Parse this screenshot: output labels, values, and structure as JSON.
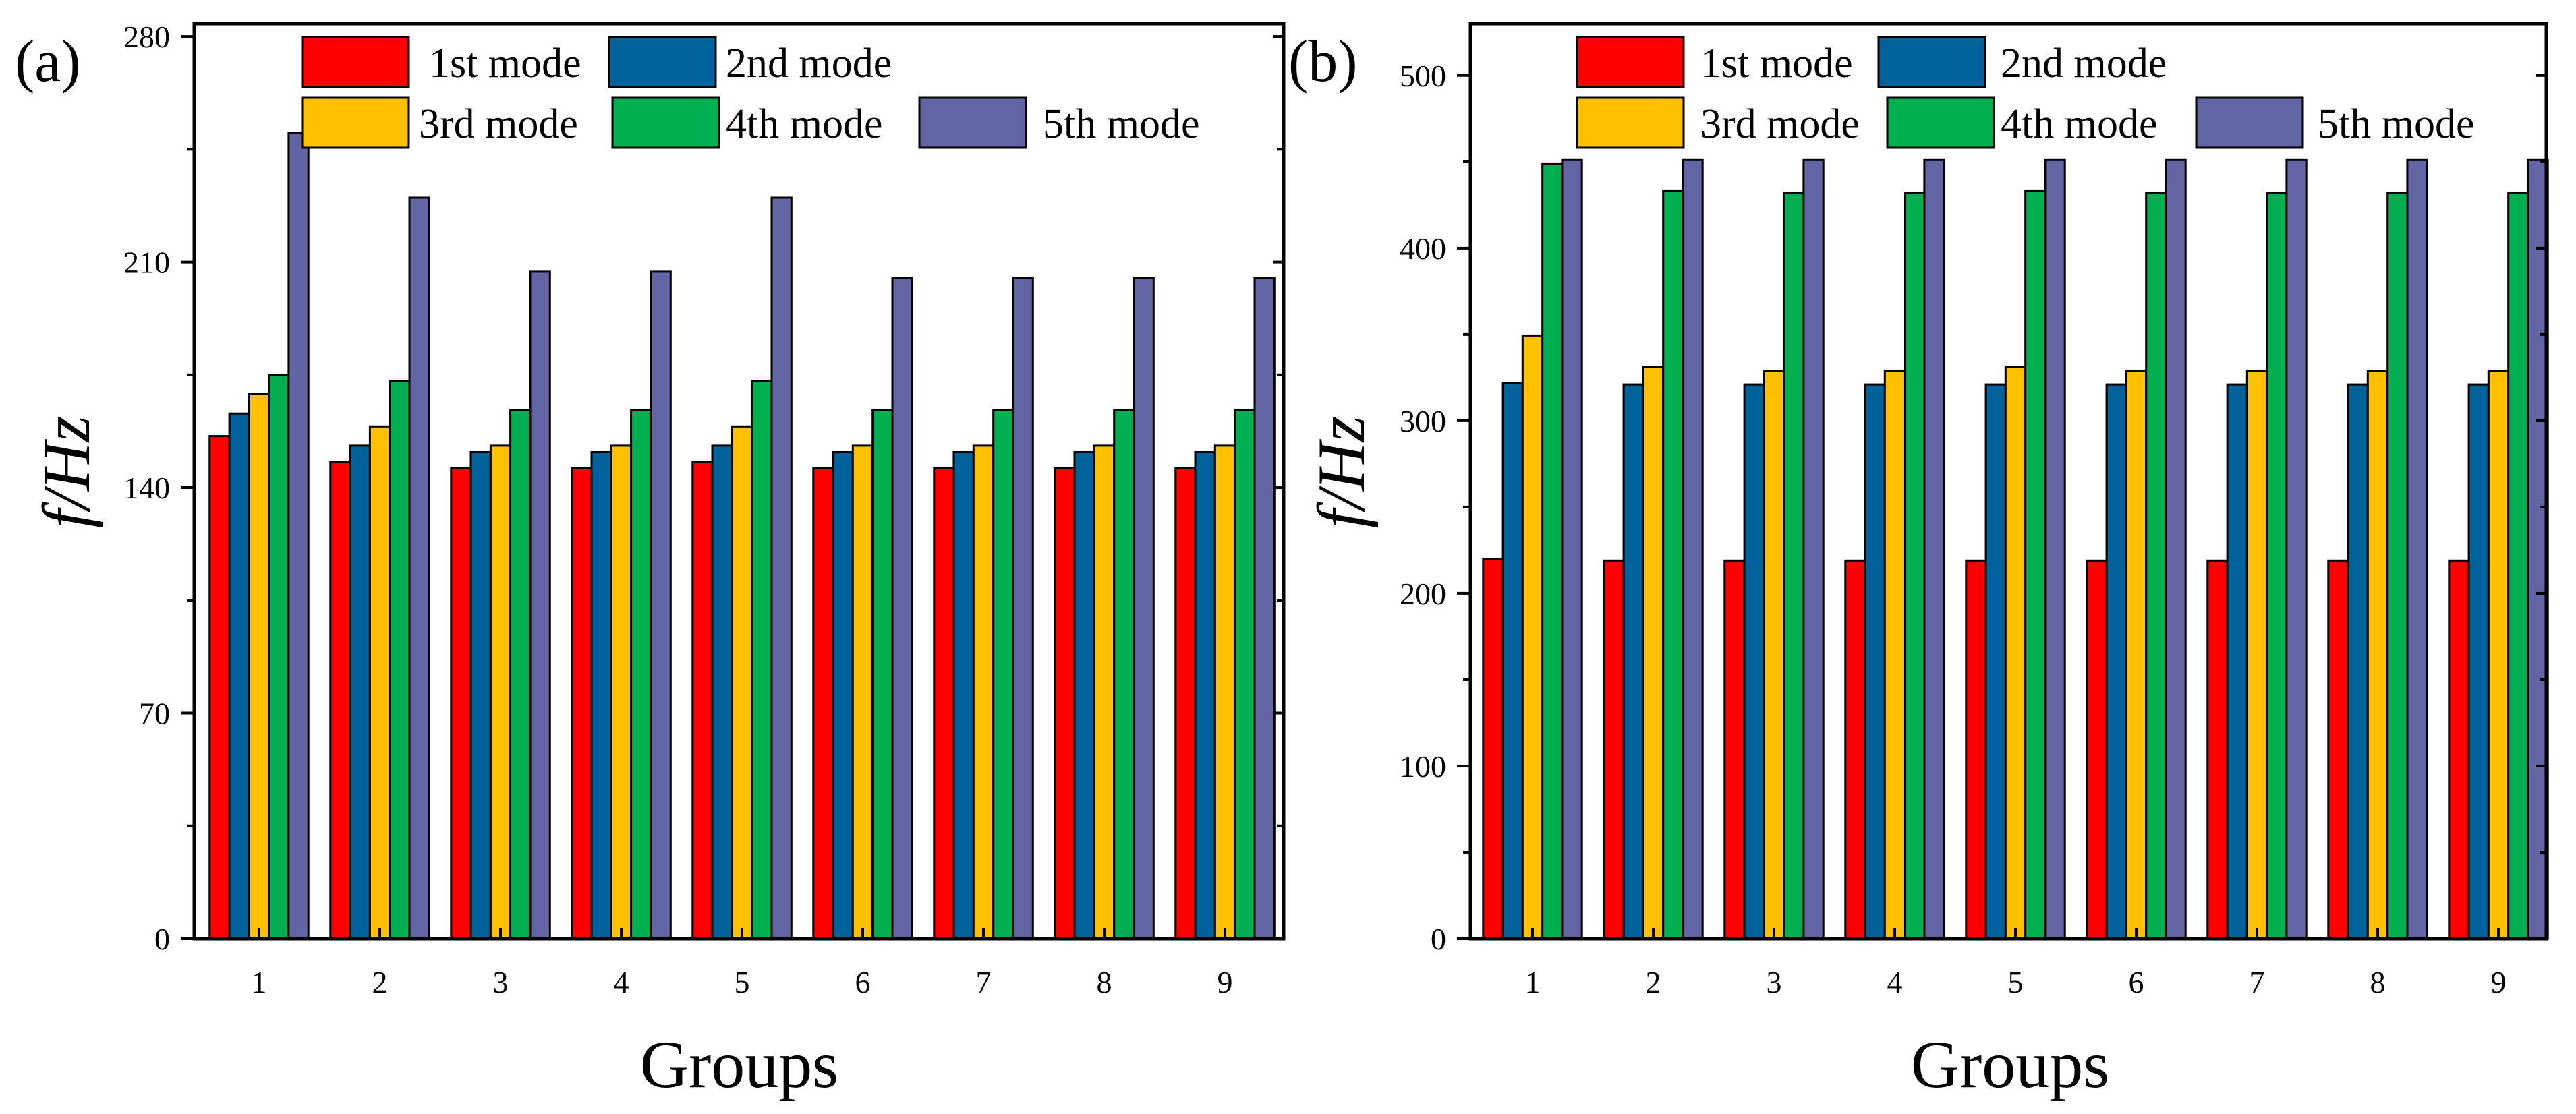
{
  "chart_data": [
    {
      "type": "bar",
      "panel_label": "(a)",
      "categories": [
        "1",
        "2",
        "3",
        "4",
        "5",
        "6",
        "7",
        "8",
        "9"
      ],
      "xlabel": "Groups",
      "ylabel": "f/Hz",
      "ylim": [
        0,
        284
      ],
      "yticks": [
        0,
        70,
        140,
        210,
        280
      ],
      "series": [
        {
          "name": "1st mode",
          "color": "#ff0000",
          "values": [
            156,
            148,
            146,
            146,
            148,
            146,
            146,
            146,
            146
          ]
        },
        {
          "name": "2nd mode",
          "color": "#00629b",
          "values": [
            163,
            153,
            151,
            151,
            153,
            151,
            151,
            151,
            151
          ]
        },
        {
          "name": "3rd mode",
          "color": "#ffc000",
          "values": [
            169,
            159,
            153,
            153,
            159,
            153,
            153,
            153,
            153
          ]
        },
        {
          "name": "4th mode",
          "color": "#00b050",
          "values": [
            175,
            173,
            164,
            164,
            173,
            164,
            164,
            164,
            164
          ]
        },
        {
          "name": "5th mode",
          "color": "#6264a4",
          "values": [
            250,
            230,
            207,
            207,
            230,
            205,
            205,
            205,
            205
          ]
        }
      ]
    },
    {
      "type": "bar",
      "panel_label": "(b)",
      "categories": [
        "1",
        "2",
        "3",
        "4",
        "5",
        "6",
        "7",
        "8",
        "9"
      ],
      "xlabel": "Groups",
      "ylabel": "f/Hz",
      "ylim": [
        0,
        530
      ],
      "yticks": [
        0,
        100,
        200,
        300,
        400,
        500
      ],
      "series": [
        {
          "name": "1st mode",
          "color": "#ff0000",
          "values": [
            220,
            219,
            219,
            219,
            219,
            219,
            219,
            219,
            219
          ]
        },
        {
          "name": "2nd mode",
          "color": "#00629b",
          "values": [
            322,
            321,
            321,
            321,
            321,
            321,
            321,
            321,
            321
          ]
        },
        {
          "name": "3rd mode",
          "color": "#ffc000",
          "values": [
            349,
            331,
            329,
            329,
            331,
            329,
            329,
            329,
            329
          ]
        },
        {
          "name": "4th mode",
          "color": "#00b050",
          "values": [
            449,
            433,
            432,
            432,
            433,
            432,
            432,
            432,
            432
          ]
        },
        {
          "name": "5th mode",
          "color": "#6264a4",
          "values": [
            451,
            451,
            451,
            451,
            451,
            451,
            451,
            451,
            451
          ]
        }
      ]
    }
  ]
}
